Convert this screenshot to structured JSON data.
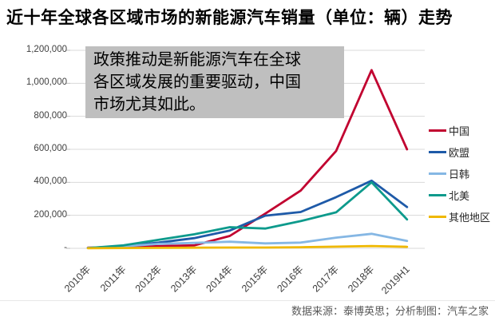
{
  "title": "近十年全球各区域市场的新能源汽车销量（单位：辆）走势",
  "annotation": {
    "lines": [
      "政策推动是新能源汽车在全球",
      "各区域发展的重要驱动，中国",
      "市场尤其如此。"
    ],
    "bg_color": "#bfbfbf"
  },
  "footer": "数据来源：泰博英思；分析制图：汽车之家",
  "colors": {
    "gridline": "#d9d9d9",
    "tick": "#bfbfbf",
    "axis_text": "#404040",
    "footer_text": "#595959"
  },
  "chart_data": {
    "type": "line",
    "title": "近十年全球各区域市场的新能源汽车销量（单位：辆）走势",
    "unit": "辆",
    "categories": [
      "2010年",
      "2011年",
      "2012年",
      "2013年",
      "2014年",
      "2015年",
      "2016年",
      "2017年",
      "2018年",
      "2019H1"
    ],
    "series": [
      {
        "name": "中国",
        "color": "#c10230",
        "values": [
          4000,
          8000,
          13000,
          18000,
          75000,
          210000,
          350000,
          590000,
          1080000,
          600000
        ]
      },
      {
        "name": "欧盟",
        "color": "#1e5aa8",
        "values": [
          2000,
          14000,
          35000,
          62000,
          108000,
          198000,
          220000,
          310000,
          410000,
          250000
        ]
      },
      {
        "name": "日韩",
        "color": "#85b7e4",
        "values": [
          3000,
          12000,
          27000,
          33000,
          40000,
          30000,
          35000,
          65000,
          88000,
          45000
        ]
      },
      {
        "name": "北美",
        "color": "#0d9a8c",
        "values": [
          2000,
          18000,
          52000,
          85000,
          128000,
          120000,
          165000,
          218000,
          400000,
          175000
        ]
      },
      {
        "name": "其他地区",
        "color": "#efb800",
        "values": [
          500,
          2000,
          3000,
          4000,
          5000,
          5000,
          7000,
          10000,
          14000,
          9000
        ]
      }
    ],
    "ylim": [
      0,
      1200000
    ],
    "ytick_interval": 200000,
    "ytick_labels": [
      "-",
      "200,000",
      "400,000",
      "600,000",
      "800,000",
      "1,000,000",
      "1,200,000"
    ],
    "grid": true,
    "legend_position": "right",
    "x_label_rotation": -45
  }
}
